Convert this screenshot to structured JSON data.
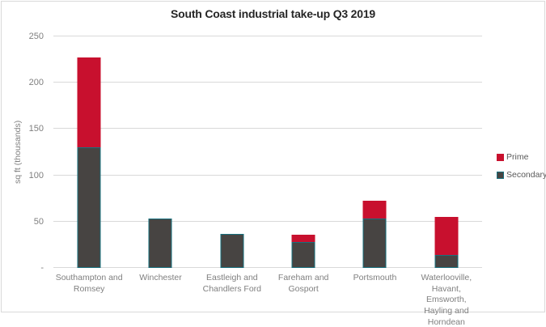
{
  "chart_data": {
    "type": "bar",
    "stacked": true,
    "title": "South Coast industrial take-up Q3 2019",
    "xlabel": "",
    "ylabel": "sq ft (thousands)",
    "categories": [
      "Southampton and Romsey",
      "Winchester",
      "Eastleigh  and Chandlers Ford",
      "Fareham and Gosport",
      "Portsmouth",
      "Waterlooville,  Havant, Emsworth, Hayling  and Horndean"
    ],
    "series": [
      {
        "name": "Secondary",
        "color": "#474442",
        "border_color": "#17707e",
        "values": [
          130,
          53,
          37,
          28,
          53,
          14
        ]
      },
      {
        "name": "Prime",
        "color": "#c8102e",
        "border_color": "#c8102e",
        "values": [
          97,
          0,
          0,
          8,
          20,
          41
        ]
      }
    ],
    "ylim": [
      0,
      250
    ],
    "ytick_interval": 50,
    "ytick_labels": [
      "-",
      "50",
      "100",
      "150",
      "200",
      "250"
    ],
    "grid": true,
    "legend_position": "right",
    "legend_order": [
      "Prime",
      "Secondary"
    ]
  },
  "colors": {
    "prime": "#c8102e",
    "secondary_fill": "#474442",
    "secondary_border": "#17707e",
    "gridline": "#d9d9d9",
    "frame_border": "#d9d9d9",
    "axis_text": "#7f7f7f",
    "legend_text": "#595959",
    "title_text": "#262626"
  }
}
